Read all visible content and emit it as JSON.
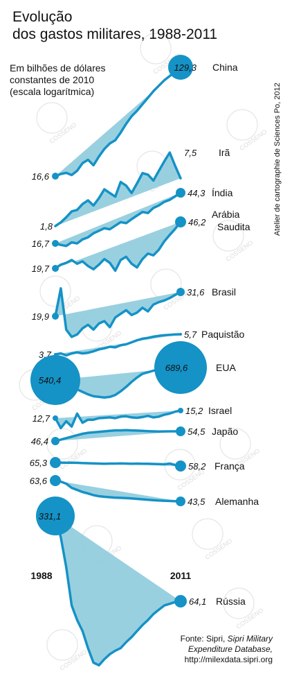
{
  "title_line1": "Evolução",
  "title_line2": "dos gastos militares, 1988-2011",
  "subtitle_line1": "Em bilhões de dólares",
  "subtitle_line2": "constantes de 2010",
  "subtitle_line3": "(escala logarítmica)",
  "credit": "Atelier de cartographie de Sciences Po, 2012",
  "source": {
    "line1_prefix": "Fonte: Sipri, ",
    "line1_italic": "Sipri Military",
    "line2": "Expenditure Database,",
    "line3": "http://milexdata.sipri.org"
  },
  "watermark": "COSSENO",
  "colors": {
    "line": "#1592c6",
    "fill": "#8ecbdd",
    "text": "#111111"
  },
  "chart_data": {
    "type": "line",
    "x_start": "1988",
    "x_end": "2011",
    "start_year_label": "1988",
    "end_year_label": "2011",
    "scale": "log",
    "series": [
      {
        "name": "China",
        "start": "16,6",
        "end": "129,3",
        "path": [
          0.0,
          0.02,
          0.03,
          0.01,
          0.05,
          0.12,
          0.15,
          0.1,
          0.18,
          0.25,
          0.3,
          0.33,
          0.4,
          0.48,
          0.55,
          0.6,
          0.66,
          0.72,
          0.78,
          0.83,
          0.88,
          0.92,
          0.96,
          1.0
        ]
      },
      {
        "name": "Irã",
        "start": "1,8",
        "end": "7,5",
        "path": [
          0.0,
          0.05,
          0.12,
          0.2,
          0.22,
          0.3,
          0.35,
          0.28,
          0.38,
          0.5,
          0.45,
          0.4,
          0.6,
          0.55,
          0.45,
          0.58,
          0.72,
          0.7,
          0.62,
          0.75,
          0.88,
          1.0,
          0.82,
          0.65
        ]
      },
      {
        "name": "Índia",
        "start": "16,7",
        "end": "44,3",
        "path": [
          0.0,
          -0.03,
          -0.05,
          0.02,
          0.0,
          0.08,
          0.12,
          0.2,
          0.25,
          0.3,
          0.28,
          0.35,
          0.42,
          0.4,
          0.48,
          0.55,
          0.62,
          0.6,
          0.7,
          0.75,
          0.82,
          0.86,
          0.93,
          1.0
        ]
      },
      {
        "name": "Arábia Saudita",
        "start": "19,7",
        "end": "46,2",
        "path": [
          0.0,
          0.08,
          0.12,
          0.18,
          0.1,
          0.15,
          0.05,
          -0.02,
          0.08,
          0.2,
          0.12,
          -0.05,
          0.18,
          0.25,
          0.1,
          0.02,
          0.2,
          0.32,
          0.28,
          0.4,
          0.58,
          0.72,
          0.85,
          1.0
        ]
      },
      {
        "name": "Brasil",
        "start": "19,9",
        "end": "31,6",
        "path": [
          0.0,
          1.15,
          -0.55,
          -0.85,
          -0.75,
          -0.5,
          -0.35,
          -0.55,
          -0.3,
          -0.2,
          -0.45,
          -0.05,
          0.1,
          0.25,
          0.05,
          0.15,
          0.35,
          0.2,
          0.48,
          0.58,
          0.65,
          0.75,
          0.88,
          1.0
        ]
      },
      {
        "name": "Paquistão",
        "start": "3,7",
        "end": "5,7",
        "path": [
          0.0,
          0.05,
          -0.05,
          0.05,
          0.1,
          0.05,
          0.08,
          0.15,
          0.25,
          0.3,
          0.38,
          0.35,
          0.45,
          0.5,
          0.6,
          0.7,
          0.78,
          0.82,
          0.88,
          0.92,
          0.95,
          0.97,
          0.99,
          1.0
        ]
      },
      {
        "name": "EUA",
        "start": "540,4",
        "end": "689,6",
        "path": [
          0.0,
          -0.08,
          -0.25,
          -0.45,
          -0.75,
          -0.95,
          -1.15,
          -1.3,
          -1.35,
          -1.4,
          -1.35,
          -1.2,
          -0.9,
          -0.55,
          -0.15,
          0.2,
          0.5,
          0.62,
          0.75,
          0.85,
          0.92,
          0.95,
          0.98,
          1.0
        ]
      },
      {
        "name": "Israel",
        "start": "12,7",
        "end": "15,2",
        "path": [
          0.0,
          -1.3,
          -0.4,
          -1.1,
          0.6,
          -0.6,
          -0.2,
          -0.2,
          0.0,
          0.05,
          0.1,
          0.0,
          0.2,
          0.25,
          0.1,
          0.05,
          0.15,
          0.3,
          0.1,
          0.2,
          0.45,
          0.6,
          0.85,
          1.0
        ]
      },
      {
        "name": "Japão",
        "start": "46,4",
        "end": "54,5",
        "path": [
          0.0,
          0.15,
          0.3,
          0.45,
          0.6,
          0.75,
          0.85,
          0.9,
          0.95,
          1.0,
          1.05,
          1.1,
          1.1,
          1.12,
          1.1,
          1.08,
          1.05,
          1.02,
          1.0,
          0.98,
          0.99,
          1.0,
          1.0,
          1.0
        ]
      },
      {
        "name": "França",
        "start": "65,3",
        "end": "58,2",
        "path": [
          0.0,
          0.03,
          0.05,
          0.05,
          0.08,
          0.15,
          0.2,
          0.25,
          0.3,
          0.35,
          0.3,
          0.3,
          0.25,
          0.3,
          0.35,
          0.3,
          0.35,
          0.35,
          0.4,
          0.45,
          0.5,
          0.3,
          0.7,
          1.0
        ]
      },
      {
        "name": "Alemanha",
        "start": "63,6",
        "end": "43,5",
        "path": [
          0.0,
          0.05,
          0.15,
          0.35,
          0.45,
          0.55,
          0.62,
          0.7,
          0.75,
          0.78,
          0.8,
          0.82,
          0.83,
          0.84,
          0.86,
          0.88,
          0.9,
          0.92,
          0.94,
          0.96,
          0.97,
          0.98,
          0.99,
          1.0
        ]
      },
      {
        "name": "Rússia",
        "start": "331,1",
        "end": "64,1",
        "path": [
          0.0,
          0.25,
          0.6,
          1.05,
          1.22,
          1.35,
          1.55,
          1.72,
          1.75,
          1.68,
          1.62,
          1.58,
          1.55,
          1.48,
          1.42,
          1.35,
          1.28,
          1.22,
          1.15,
          1.1,
          1.05,
          1.03,
          1.01,
          1.0
        ]
      }
    ]
  }
}
